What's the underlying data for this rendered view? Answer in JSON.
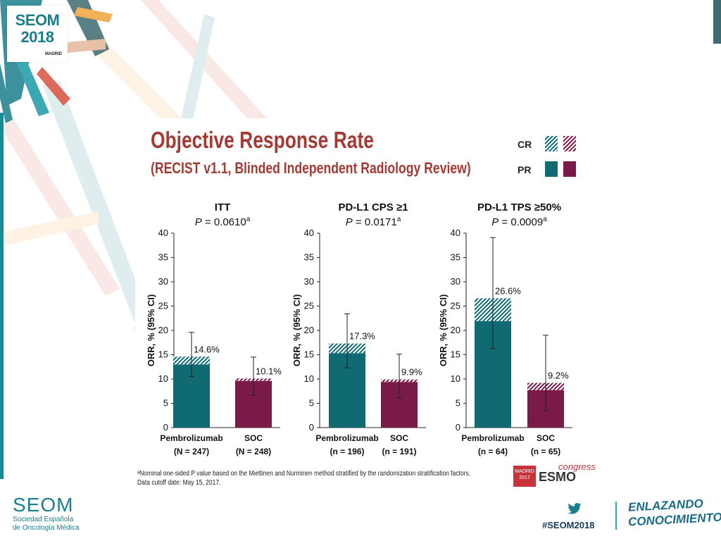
{
  "branding": {
    "logo_line1": "SEOM",
    "logo_line2": "2018",
    "logo_city": "MADRID",
    "org_name": "SEOM",
    "org_sub1": "Sociedad Española",
    "org_sub2": "de Oncología Médica",
    "hashtag": "#SEOM2018",
    "slogan_line1": "ENLAZANDO",
    "slogan_line2": "CONOCIMIENTO",
    "esmo_box_line1": "MADRID",
    "esmo_box_line2": "2017",
    "esmo_word": "ESMO",
    "esmo_congress": "congress",
    "colors": {
      "teal": "#1b7e8b",
      "accent": "#a33a34"
    }
  },
  "slide": {
    "title": "Objective Response Rate",
    "subtitle": "(RECIST v1.1, Blinded Independent Radiology Review)",
    "footnote_line1": "ᵃNominal one-sided P value based on the Miettinen and Nurminen method stratified by the randomization stratification factors.",
    "footnote_line2": "Data cutoff date: May 15, 2017."
  },
  "legend": {
    "entries": [
      {
        "label": "CR",
        "pattern": "hatched"
      },
      {
        "label": "PR",
        "pattern": "solid"
      }
    ]
  },
  "chart_data": [
    {
      "type": "bar",
      "stacked": true,
      "title": "ITT",
      "p_label": "P",
      "p_value": " = 0.0610",
      "p_sup": "a",
      "ylabel": "ORR, % (95% CI)",
      "ylim": [
        0,
        40
      ],
      "yticks": [
        0,
        5,
        10,
        15,
        20,
        25,
        30,
        35,
        40
      ],
      "categories": [
        {
          "name": "Pembrolizumab",
          "n": "(N = 247)"
        },
        {
          "name": "SOC",
          "n": "(N = 248)"
        }
      ],
      "series": [
        {
          "name": "PR",
          "values": [
            13.0,
            9.6
          ]
        },
        {
          "name": "CR",
          "values": [
            1.6,
            0.5
          ]
        }
      ],
      "totals": [
        14.6,
        10.1
      ],
      "total_labels": [
        "14.6%",
        "10.1%"
      ],
      "ci": [
        [
          10.5,
          19.6
        ],
        [
          6.6,
          14.5
        ]
      ],
      "colors": [
        "#0f6a72",
        "#7a1a48"
      ]
    },
    {
      "type": "bar",
      "stacked": true,
      "title": "PD-L1 CPS ≥1",
      "p_label": "P",
      "p_value": " = 0.0171",
      "p_sup": "a",
      "ylabel": "ORR, % (95% CI)",
      "ylim": [
        0,
        40
      ],
      "yticks": [
        0,
        5,
        10,
        15,
        20,
        25,
        30,
        35,
        40
      ],
      "categories": [
        {
          "name": "Pembrolizumab",
          "n": "(n = 196)"
        },
        {
          "name": "SOC",
          "n": "(n = 191)"
        }
      ],
      "series": [
        {
          "name": "PR",
          "values": [
            15.3,
            9.4
          ]
        },
        {
          "name": "CR",
          "values": [
            2.0,
            0.5
          ]
        }
      ],
      "totals": [
        17.3,
        9.9
      ],
      "total_labels": [
        "17.3%",
        "9.9%"
      ],
      "ci": [
        [
          12.3,
          23.4
        ],
        [
          6.1,
          15.1
        ]
      ],
      "colors": [
        "#0f6a72",
        "#7a1a48"
      ]
    },
    {
      "type": "bar",
      "stacked": true,
      "title": "PD-L1 TPS ≥50%",
      "p_label": "P",
      "p_value": " = 0.0009",
      "p_sup": "a",
      "ylabel": "ORR, % (95% CI)",
      "ylim": [
        0,
        40
      ],
      "yticks": [
        0,
        5,
        10,
        15,
        20,
        25,
        30,
        35,
        40
      ],
      "categories": [
        {
          "name": "Pembrolizumab",
          "n": "(n = 64)"
        },
        {
          "name": "SOC",
          "n": "(n = 65)"
        }
      ],
      "series": [
        {
          "name": "PR",
          "values": [
            21.9,
            7.7
          ]
        },
        {
          "name": "CR",
          "values": [
            4.7,
            1.5
          ]
        }
      ],
      "totals": [
        26.6,
        9.2
      ],
      "total_labels": [
        "26.6%",
        "9.2%"
      ],
      "ci": [
        [
          16.3,
          39.1
        ],
        [
          3.5,
          19.0
        ]
      ],
      "colors": [
        "#0f6a72",
        "#7a1a48"
      ]
    }
  ]
}
